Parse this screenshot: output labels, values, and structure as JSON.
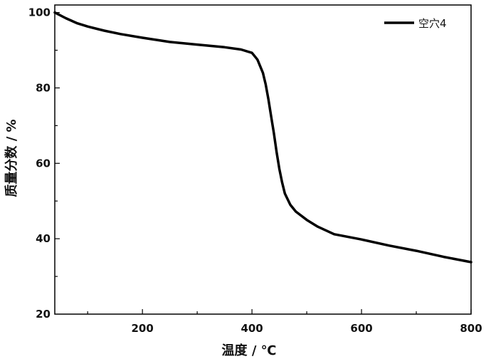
{
  "chart_data": {
    "type": "line",
    "xlabel": "温度 / ℃",
    "ylabel": "质量分数 / %",
    "xlim": [
      40,
      800
    ],
    "ylim": [
      20,
      102
    ],
    "xticks": [
      200,
      400,
      600,
      800
    ],
    "yticks": [
      20,
      40,
      60,
      80,
      100
    ],
    "grid": false,
    "legend_position": "top-right",
    "series": [
      {
        "name": "空穴4",
        "color": "#000000",
        "x": [
          40,
          60,
          80,
          100,
          130,
          160,
          200,
          250,
          300,
          350,
          380,
          400,
          410,
          420,
          425,
          430,
          435,
          440,
          445,
          450,
          455,
          460,
          470,
          480,
          500,
          520,
          550,
          600,
          650,
          700,
          750,
          800
        ],
        "y": [
          100,
          98.5,
          97.2,
          96.3,
          95.2,
          94.3,
          93.3,
          92.2,
          91.5,
          90.8,
          90.2,
          89.3,
          87.5,
          84,
          81,
          77,
          72.5,
          68,
          63,
          58.5,
          55,
          52,
          49,
          47.2,
          45,
          43.2,
          41.2,
          39.8,
          38.2,
          36.8,
          35.2,
          33.8
        ]
      }
    ]
  }
}
